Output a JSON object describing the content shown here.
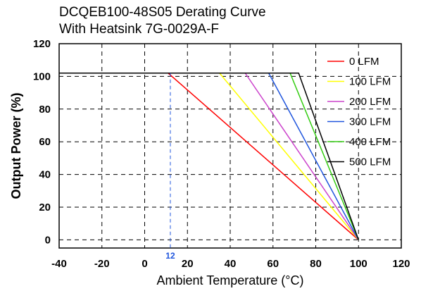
{
  "chart_data": {
    "type": "line",
    "title_line1": "DCQEB100-48S05 Derating Curve",
    "title_line2": "With Heatsink 7G-0029A-F",
    "xlabel": "Ambient Temperature (°C)",
    "ylabel": "Output Power (%)",
    "xlim": [
      -40,
      120
    ],
    "ylim": [
      -5,
      120
    ],
    "xticks": [
      -40,
      -20,
      0,
      20,
      40,
      60,
      80,
      100,
      120
    ],
    "yticks": [
      0,
      20,
      40,
      60,
      80,
      100,
      120
    ],
    "grid": "dashed",
    "legend_position": "top-right",
    "flat_level": 102,
    "series": [
      {
        "name": "0 LFM",
        "color": "#ff0000",
        "x": [
          -40,
          11,
          100
        ],
        "y": [
          102,
          102,
          0
        ]
      },
      {
        "name": "100 LFM",
        "color": "#ffff00",
        "x": [
          -40,
          35,
          100
        ],
        "y": [
          102,
          102,
          0
        ]
      },
      {
        "name": "200 LFM",
        "color": "#cc44cc",
        "x": [
          -40,
          47,
          100
        ],
        "y": [
          102,
          102,
          0
        ]
      },
      {
        "name": "300 LFM",
        "color": "#1f55dd",
        "x": [
          -40,
          58,
          100
        ],
        "y": [
          102,
          102,
          0
        ]
      },
      {
        "name": "400 LFM",
        "color": "#33cc11",
        "x": [
          -40,
          68,
          100
        ],
        "y": [
          102,
          102,
          0
        ]
      },
      {
        "name": "500 LFM",
        "color": "#000000",
        "x": [
          -40,
          72,
          100
        ],
        "y": [
          102,
          102,
          0
        ]
      }
    ],
    "annotation": {
      "text": "12",
      "x": 12,
      "color": "#1f55dd"
    }
  }
}
